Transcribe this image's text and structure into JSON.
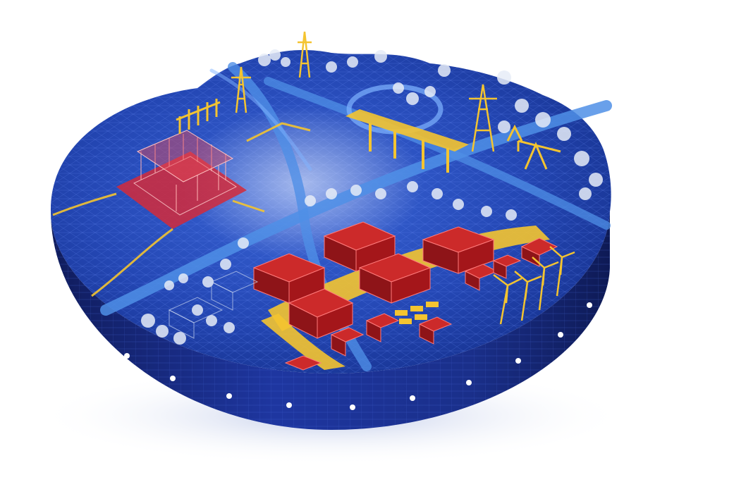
{
  "scene": {
    "subject": "isometric-smart-grid-city-disc",
    "colors": {
      "background": "#ffffff",
      "disc_top": "#1d3ea8",
      "disc_top_light": "#3a66d8",
      "disc_side": "#1a2f8a",
      "disc_side_dark": "#101c5c",
      "road": "#4f8fe6",
      "road_light": "#7fb4ff",
      "building_red": "#a4161a",
      "building_red_light": "#cc2a2a",
      "datacenter_red": "#d42a3a",
      "grid_yellow": "#f4c430",
      "tree_white": "#e6ecf7",
      "rivet": "#ffffff"
    },
    "icons": [
      "transmission-tower-icon",
      "substation-icon",
      "data-center-icon",
      "bridge-icon",
      "oil-pump-icon",
      "wind-turbine-icon",
      "factory-building-icon",
      "tree-icon"
    ]
  }
}
